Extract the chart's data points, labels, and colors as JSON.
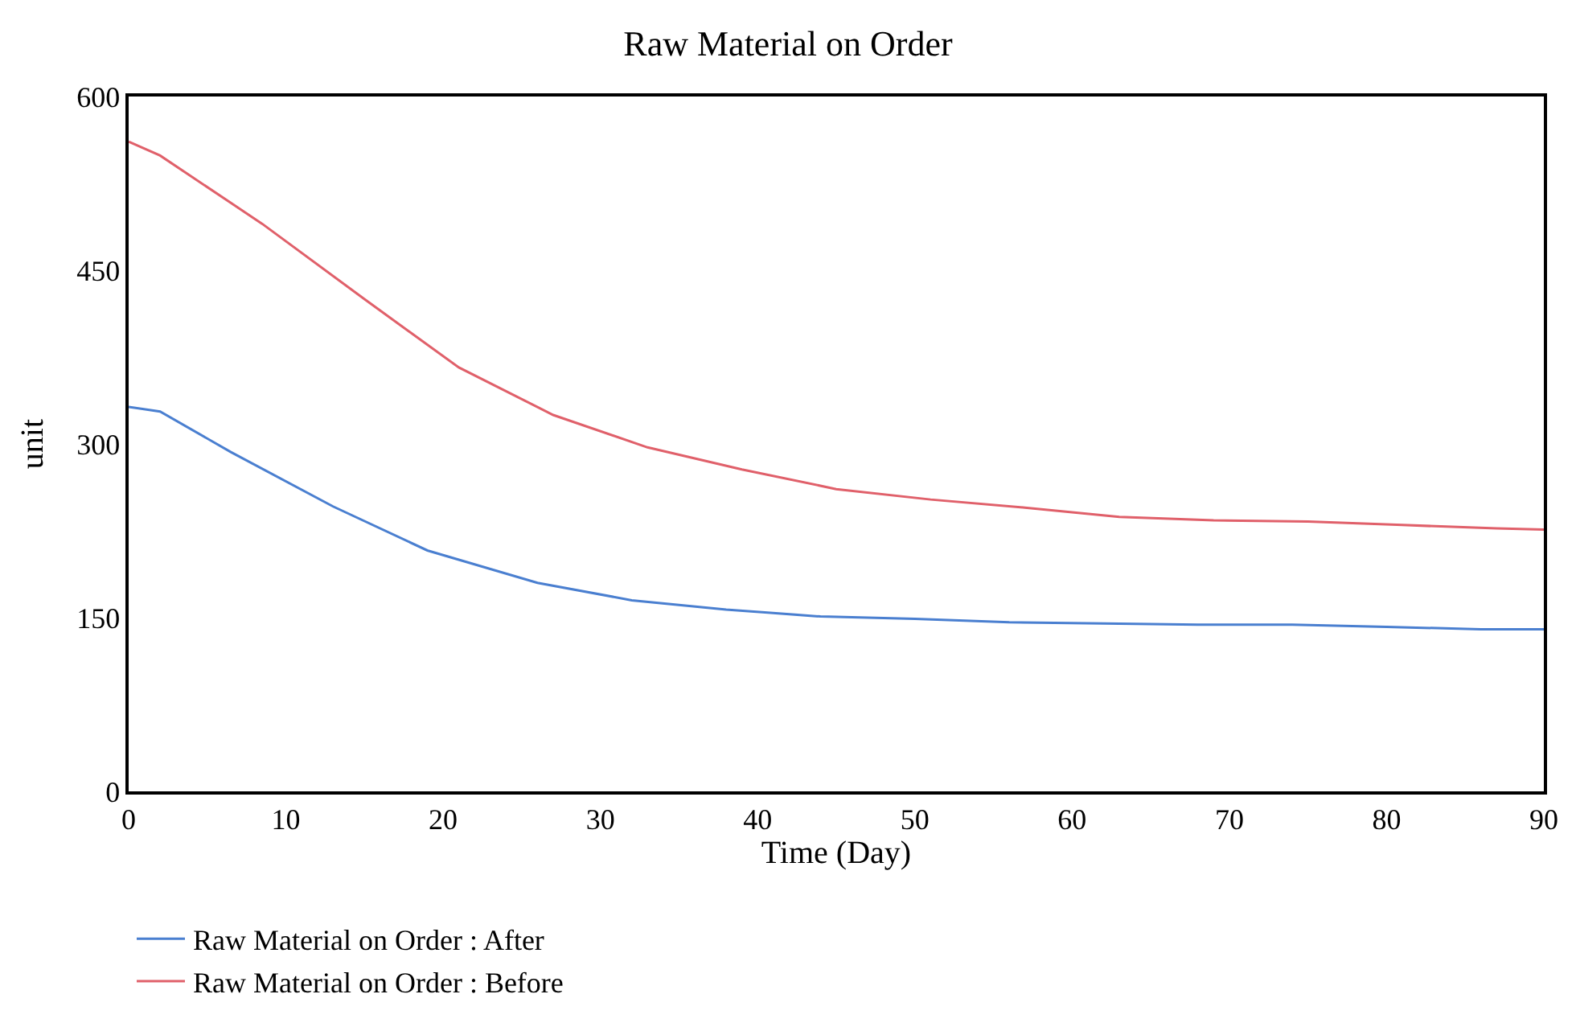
{
  "chart_data": {
    "type": "line",
    "title": "Raw Material on Order",
    "xlabel": "Time (Day)",
    "ylabel": "unit",
    "xlim": [
      0,
      90
    ],
    "xticks": [
      0,
      10,
      20,
      30,
      40,
      50,
      60,
      70,
      80,
      90
    ],
    "ylim": [
      0,
      600
    ],
    "yticks": [
      0,
      150,
      300,
      450,
      600
    ],
    "legend": "bottom",
    "series": [
      {
        "name": "Raw Material on Order : After",
        "color": "#4a7fd0",
        "x": [
          0,
          2,
          6.5,
          13,
          19,
          26,
          32,
          38,
          44,
          50,
          56,
          62,
          68,
          74,
          80,
          86,
          90
        ],
        "values": [
          332,
          328,
          293,
          246,
          208,
          180,
          165,
          157,
          151,
          149,
          146,
          145,
          144,
          144,
          142,
          140,
          140
        ]
      },
      {
        "name": "Raw Material on Order : Before",
        "color": "#e0606a",
        "x": [
          0,
          2,
          8.5,
          15,
          21,
          27,
          33,
          39,
          45,
          51,
          57,
          63,
          69,
          75,
          81,
          87,
          90
        ],
        "values": [
          561,
          549,
          490,
          425,
          366,
          325,
          297,
          278,
          261,
          252,
          245,
          237,
          234,
          233,
          230,
          227,
          226
        ]
      }
    ]
  }
}
